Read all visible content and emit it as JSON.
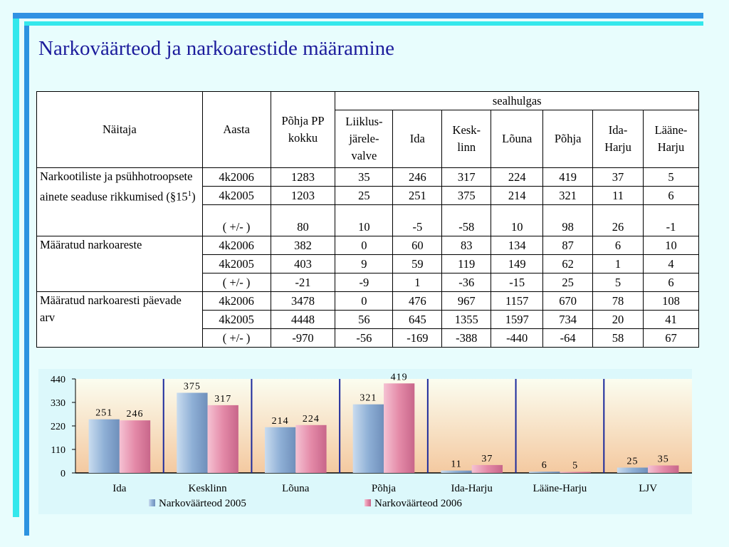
{
  "title": "Narkoväärteod ja narkoarestide määramine",
  "table": {
    "header": {
      "naitaja": "Näitaja",
      "aasta": "Aasta",
      "pohja_pp": "Põhja PP kokku",
      "sealhulgas": "sealhulgas",
      "sub": [
        "Liiklus-järele-valve",
        "Ida",
        "Kesk-linn",
        "Lõuna",
        "Põhja",
        "Ida-Harju",
        "Lääne-Harju"
      ]
    },
    "groups": [
      {
        "label": "Narkootiliste ja psühhotroopsete ainete seaduse rikkumised (§15",
        "label_sup": "1",
        "label_end": ")",
        "rows": [
          {
            "year": "4k2006",
            "values": [
              "1283",
              "35",
              "246",
              "317",
              "224",
              "419",
              "37",
              "5"
            ]
          },
          {
            "year": "4k2005",
            "values": [
              "1203",
              "25",
              "251",
              "375",
              "214",
              "321",
              "11",
              "6"
            ]
          },
          {
            "year": "( +/- )",
            "values": [
              "80",
              "10",
              "-5",
              "-58",
              "10",
              "98",
              "26",
              "-1"
            ]
          }
        ]
      },
      {
        "label": "Määratud narkoareste",
        "label_sup": "",
        "label_end": "",
        "rows": [
          {
            "year": "4k2006",
            "values": [
              "382",
              "0",
              "60",
              "83",
              "134",
              "87",
              "6",
              "10"
            ]
          },
          {
            "year": "4k2005",
            "values": [
              "403",
              "9",
              "59",
              "119",
              "149",
              "62",
              "1",
              "4"
            ]
          },
          {
            "year": "( +/- )",
            "values": [
              "-21",
              "-9",
              "1",
              "-36",
              "-15",
              "25",
              "5",
              "6"
            ]
          }
        ]
      },
      {
        "label": "Määratud narkoaresti päevade arv",
        "label_sup": "",
        "label_end": "",
        "rows": [
          {
            "year": "4k2006",
            "values": [
              "3478",
              "0",
              "476",
              "967",
              "1157",
              "670",
              "78",
              "108"
            ]
          },
          {
            "year": "4k2005",
            "values": [
              "4448",
              "56",
              "645",
              "1355",
              "1597",
              "734",
              "20",
              "41"
            ]
          },
          {
            "year": "( +/- )",
            "values": [
              "-970",
              "-56",
              "-169",
              "-388",
              "-440",
              "-64",
              "58",
              "67"
            ]
          }
        ]
      }
    ]
  },
  "chart_data": {
    "type": "bar",
    "categories": [
      "Ida",
      "Kesklinn",
      "Lõuna",
      "Põhja",
      "Ida-Harju",
      "Lääne-Harju",
      "LJV"
    ],
    "series": [
      {
        "name": "Narkoväärteod 2005",
        "values": [
          251,
          375,
          214,
          321,
          11,
          6,
          25
        ]
      },
      {
        "name": "Narkoväärteod 2006",
        "values": [
          246,
          317,
          224,
          419,
          37,
          5,
          35
        ]
      }
    ],
    "yticks": [
      "0",
      "110",
      "220",
      "330",
      "440"
    ],
    "ylim": [
      0,
      440
    ],
    "legend": "bottom",
    "colors": {
      "series1": "#8fb0d6",
      "series2": "#e48aa8",
      "separator": "#1c2a9c",
      "bg_top": "#fbfdf0",
      "bg_bottom": "#f4c9a0"
    }
  }
}
